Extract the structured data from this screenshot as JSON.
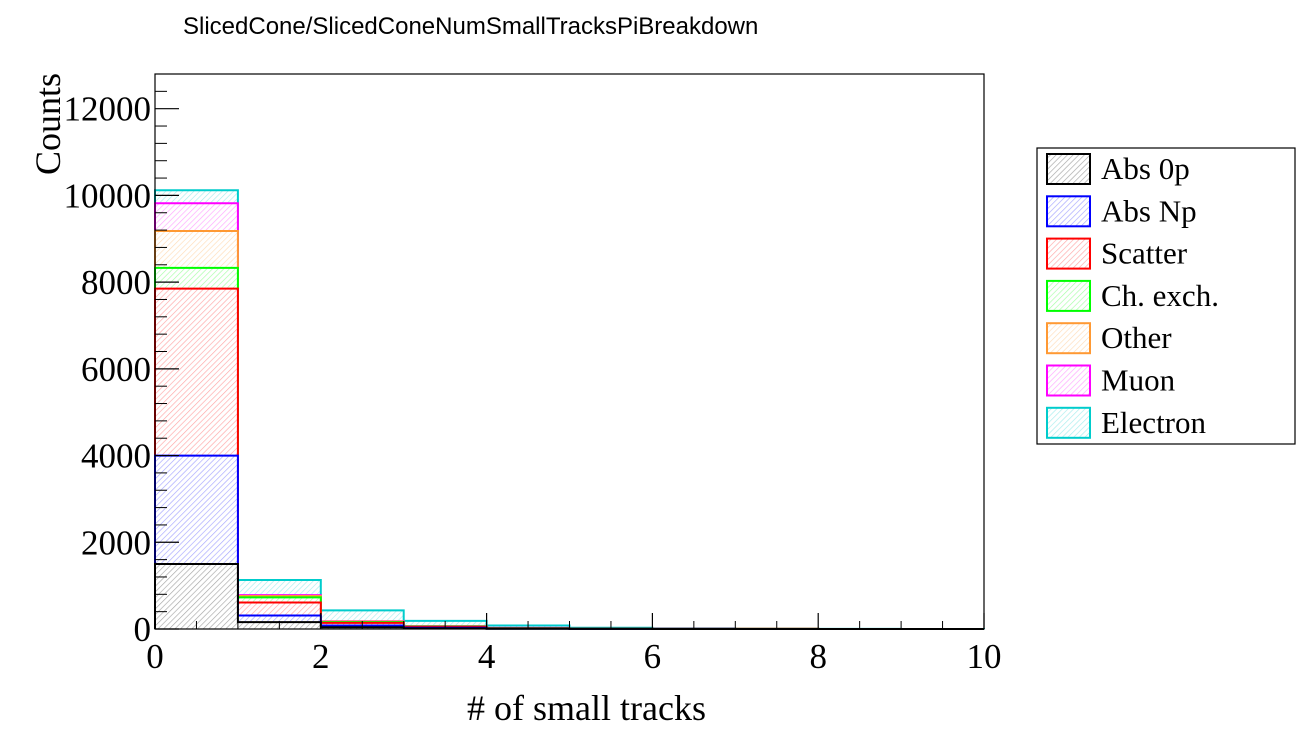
{
  "chart_data": {
    "type": "bar",
    "stacked": true,
    "title": "SlicedCone/SlicedConeNumSmallTracksPiBreakdown",
    "xlabel": "# of small tracks",
    "ylabel": "Counts",
    "xlim": [
      0,
      10
    ],
    "ylim": [
      0,
      12800
    ],
    "x_ticks": [
      "0",
      "2",
      "4",
      "6",
      "8",
      "10"
    ],
    "y_ticks": [
      "0",
      "2000",
      "4000",
      "6000",
      "8000",
      "10000",
      "12000"
    ],
    "bin_edges": [
      0,
      1,
      2,
      3,
      4,
      5,
      6,
      7,
      8,
      9,
      10
    ],
    "legend_position": "right",
    "series": [
      {
        "name": "Abs 0p",
        "color": "#000000",
        "values": [
          1500,
          160,
          40,
          15,
          5,
          2,
          1,
          1,
          0,
          0
        ]
      },
      {
        "name": "Abs Np",
        "color": "#0000ff",
        "values": [
          2500,
          150,
          40,
          15,
          5,
          2,
          1,
          0,
          0,
          0
        ]
      },
      {
        "name": "Scatter",
        "color": "#ff0000",
        "values": [
          3850,
          300,
          60,
          20,
          8,
          3,
          1,
          1,
          0,
          0
        ]
      },
      {
        "name": "Ch. exch.",
        "color": "#00ff00",
        "values": [
          480,
          120,
          20,
          8,
          3,
          1,
          0,
          0,
          0,
          0
        ]
      },
      {
        "name": "Other",
        "color": "#ff9933",
        "values": [
          850,
          30,
          10,
          5,
          2,
          1,
          3,
          0,
          0,
          0
        ]
      },
      {
        "name": "Muon",
        "color": "#ff00ff",
        "values": [
          640,
          20,
          10,
          4,
          2,
          1,
          0,
          0,
          0,
          0
        ]
      },
      {
        "name": "Electron",
        "color": "#00cccc",
        "values": [
          300,
          350,
          250,
          120,
          55,
          20,
          8,
          4,
          2,
          1
        ]
      }
    ]
  }
}
